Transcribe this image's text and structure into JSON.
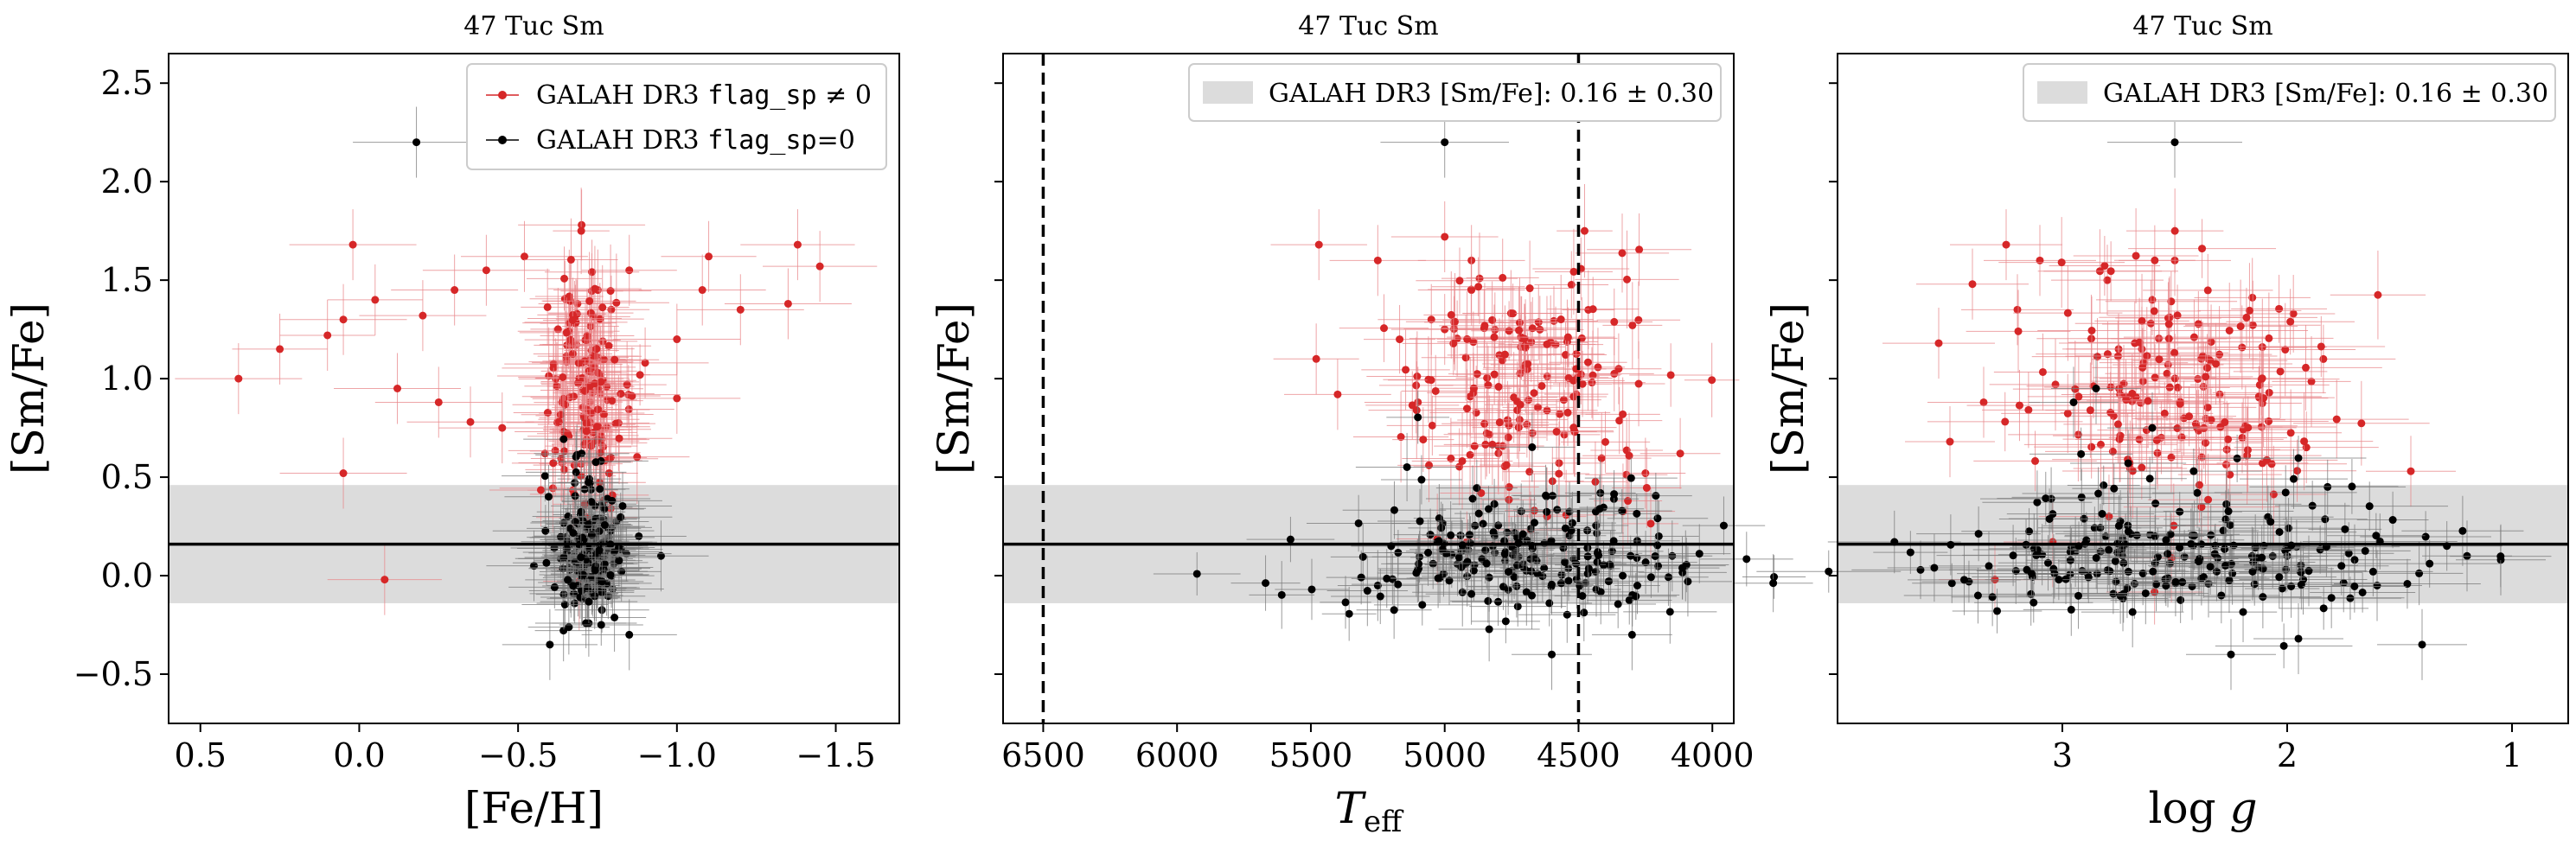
{
  "figure": {
    "colors": {
      "red": "#d62728",
      "red_err": "#e8858a",
      "black": "#000000",
      "black_err": "#7a7a7a",
      "band": "#dcdcdc"
    }
  },
  "chart_data": [
    {
      "type": "scatter",
      "title": "47 Tuc Sm",
      "xlabel": "[Fe/H]",
      "ylabel": "[Sm/Fe]",
      "xlim": [
        0.6,
        -1.7
      ],
      "ylim": [
        -0.75,
        2.65
      ],
      "x_inverted": true,
      "xticks": [
        0.5,
        0.0,
        -0.5,
        -1.0,
        -1.5
      ],
      "xtick_labels": [
        "0.5",
        "0.0",
        "−0.5",
        "−1.0",
        "−1.5"
      ],
      "yticks": [
        -0.5,
        0.0,
        0.5,
        1.0,
        1.5,
        2.0,
        2.5
      ],
      "ytick_labels": [
        "−0.5",
        "0.0",
        "0.5",
        "1.0",
        "1.5",
        "2.0",
        "2.5"
      ],
      "legend_position": "top-right",
      "legend": [
        {
          "label_pre": "GALAH DR3 ",
          "label_code": "flag_sp",
          "label_post": " ≠ 0",
          "series": "flagged"
        },
        {
          "label_pre": "GALAH DR3 ",
          "label_code": "flag_sp",
          "label_post": "=0",
          "series": "clean"
        }
      ],
      "hline": 0.16,
      "band": [
        -0.14,
        0.46
      ],
      "vlines": [],
      "cluster": {
        "center": -0.72,
        "spread": 0.055,
        "err": 0.12
      },
      "series": [
        {
          "name": "flagged",
          "highlights": [
            [
              -0.08,
              -0.02,
              0.18
            ],
            [
              0.38,
              1.0,
              0.2
            ],
            [
              0.25,
              1.15,
              0.15
            ],
            [
              0.1,
              1.22,
              0.15
            ],
            [
              0.05,
              1.3,
              0.2
            ],
            [
              0.02,
              1.68,
              0.2
            ],
            [
              -0.05,
              1.4,
              0.15
            ],
            [
              0.05,
              0.52,
              0.2
            ],
            [
              -1.38,
              1.68,
              0.18
            ],
            [
              -1.45,
              1.57,
              0.18
            ],
            [
              -1.35,
              1.38,
              0.2
            ],
            [
              -1.2,
              1.35,
              0.2
            ],
            [
              -1.08,
              1.45,
              0.2
            ],
            [
              -1.1,
              1.62,
              0.15
            ],
            [
              -1.0,
              1.2,
              0.2
            ],
            [
              -1.0,
              0.9,
              0.2
            ],
            [
              -0.7,
              1.78,
              0.2
            ],
            [
              -0.52,
              1.62,
              0.2
            ],
            [
              -0.4,
              1.55,
              0.2
            ],
            [
              -0.3,
              1.45,
              0.2
            ],
            [
              -0.2,
              1.32,
              0.2
            ],
            [
              -0.12,
              0.95,
              0.2
            ],
            [
              -0.25,
              0.88,
              0.2
            ],
            [
              -0.35,
              0.78,
              0.2
            ],
            [
              -0.45,
              0.75,
              0.2
            ],
            [
              -0.85,
              1.55,
              0.15
            ],
            [
              -0.9,
              1.08,
              0.2
            ]
          ]
        },
        {
          "name": "clean",
          "highlights": [
            [
              -0.18,
              2.2,
              0.2
            ],
            [
              -0.95,
              0.1,
              0.15
            ],
            [
              -0.85,
              -0.3,
              0.15
            ],
            [
              -0.6,
              -0.35,
              0.15
            ],
            [
              -0.55,
              0.05,
              0.15
            ],
            [
              -0.88,
              0.2,
              0.15
            ],
            [
              -0.7,
              0.62,
              0.15
            ]
          ]
        }
      ]
    },
    {
      "type": "scatter",
      "title": "47 Tuc Sm",
      "xlabel": "T_eff",
      "ylabel": "[Sm/Fe]",
      "xlim": [
        6650,
        3920
      ],
      "ylim": [
        -0.75,
        2.65
      ],
      "x_inverted": true,
      "xticks": [
        6500,
        6000,
        5500,
        5000,
        4500,
        4000
      ],
      "xtick_labels": [
        "6500",
        "6000",
        "5500",
        "5000",
        "4500",
        "4000"
      ],
      "yticks": [
        -0.5,
        0.0,
        0.5,
        1.0,
        1.5,
        2.0,
        2.5
      ],
      "ytick_labels": [],
      "legend_position": "top-right",
      "legend": [
        {
          "label": "GALAH DR3 [Sm/Fe]: 0.16 ± 0.30",
          "series": "band"
        }
      ],
      "hline": 0.16,
      "band": [
        -0.14,
        0.46
      ],
      "vlines": [
        6500,
        4500
      ],
      "cluster": {
        "center": 4700,
        "spread": 300,
        "err": 140
      },
      "series": [
        {
          "name": "flagged",
          "highlights": [
            [
              5470,
              1.68,
              180
            ],
            [
              5480,
              1.1,
              160
            ],
            [
              5400,
              0.92,
              200
            ],
            [
              5250,
              1.6,
              180
            ],
            [
              5000,
              1.72,
              200
            ],
            [
              4900,
              1.6,
              200
            ],
            [
              4700,
              1.2,
              180
            ],
            [
              4450,
              0.98,
              200
            ],
            [
              4350,
              1.05,
              160
            ],
            [
              4250,
              0.52,
              150
            ],
            [
              4120,
              0.62,
              150
            ],
            [
              4900,
              1.45,
              200
            ],
            [
              5000,
              1.25,
              200
            ],
            [
              5050,
              1.3,
              200
            ],
            [
              5100,
              0.88,
              200
            ]
          ]
        },
        {
          "name": "clean",
          "highlights": [
            [
              5000,
              2.2,
              240
            ],
            [
              4200,
              0.2,
              150
            ],
            [
              4150,
              0.1,
              150
            ],
            [
              4100,
              0.05,
              150
            ],
            [
              4300,
              -0.3,
              150
            ],
            [
              4380,
              0.05,
              150
            ],
            [
              4600,
              -0.4,
              150
            ],
            [
              5200,
              0.15,
              150
            ],
            [
              5250,
              -0.05,
              150
            ]
          ]
        }
      ]
    },
    {
      "type": "scatter",
      "title": "47 Tuc Sm",
      "xlabel": "log g",
      "ylabel": "[Sm/Fe]",
      "xlim": [
        4.0,
        0.75
      ],
      "ylim": [
        -0.75,
        2.65
      ],
      "x_inverted": true,
      "xticks": [
        3,
        2,
        1
      ],
      "xtick_labels": [
        "3",
        "2",
        "1"
      ],
      "yticks": [
        -0.5,
        0.0,
        0.5,
        1.0,
        1.5,
        2.0,
        2.5
      ],
      "ytick_labels": [],
      "legend_position": "top-right",
      "legend": [
        {
          "label": "GALAH DR3 [Sm/Fe]: 0.16 ± 0.30",
          "series": "band"
        }
      ],
      "hline": 0.16,
      "band": [
        -0.14,
        0.46
      ],
      "vlines": [],
      "cluster": {
        "center": 2.5,
        "spread": 0.45,
        "err": 0.25
      },
      "series": [
        {
          "name": "flagged",
          "highlights": [
            [
              3.3,
              -0.02,
              0.25
            ],
            [
              3.55,
              1.18,
              0.25
            ],
            [
              3.5,
              0.68,
              0.2
            ],
            [
              3.4,
              1.48,
              0.25
            ],
            [
              3.25,
              1.68,
              0.25
            ],
            [
              3.1,
              1.6,
              0.25
            ],
            [
              3.2,
              1.35,
              0.25
            ],
            [
              3.35,
              0.88,
              0.25
            ],
            [
              2.8,
              1.5,
              0.25
            ],
            [
              2.5,
              1.6,
              0.25
            ],
            [
              2.6,
              1.4,
              0.25
            ],
            [
              2.2,
              0.7,
              0.2
            ],
            [
              1.45,
              0.53,
              0.2
            ],
            [
              2.3,
              0.92,
              0.2
            ],
            [
              2.75,
              1.15,
              0.25
            ]
          ]
        },
        {
          "name": "clean",
          "highlights": [
            [
              2.5,
              2.2,
              0.3
            ],
            [
              2.95,
              0.88,
              0.2
            ],
            [
              2.85,
              0.95,
              0.2
            ],
            [
              2.6,
              0.75,
              0.2
            ],
            [
              2.4,
              0.42,
              0.2
            ],
            [
              2.25,
              -0.4,
              0.2
            ],
            [
              1.95,
              -0.32,
              0.2
            ],
            [
              1.4,
              -0.35,
              0.2
            ],
            [
              1.2,
              0.1,
              0.2
            ],
            [
              1.05,
              0.08,
              0.2
            ],
            [
              1.7,
              0.08,
              0.25
            ],
            [
              2.0,
              0.1,
              0.25
            ],
            [
              1.6,
              -0.05,
              0.2
            ]
          ]
        }
      ]
    }
  ]
}
